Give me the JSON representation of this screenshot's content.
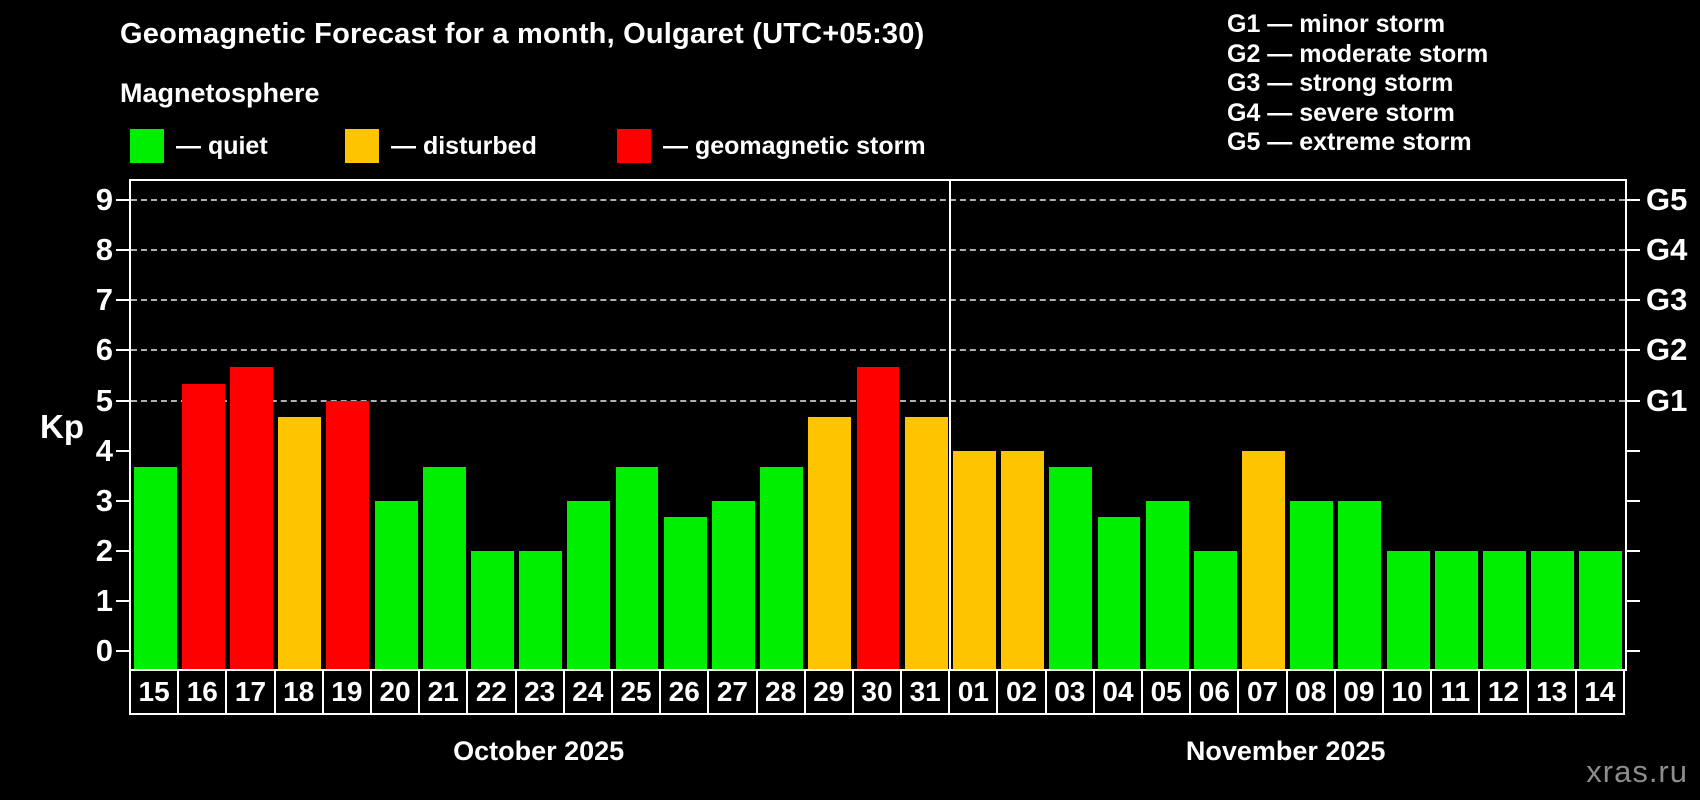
{
  "title": "Geomagnetic Forecast for a month, Oulgaret (UTC+05:30)",
  "subtitle": "Magnetosphere",
  "legend": {
    "items": [
      {
        "key": "quiet",
        "label": "— quiet",
        "color": "#00ee00"
      },
      {
        "key": "disturbed",
        "label": "— disturbed",
        "color": "#ffc400"
      },
      {
        "key": "storm",
        "label": "— geomagnetic storm",
        "color": "#ff0000"
      }
    ]
  },
  "g_scale_legend": [
    "G1 — minor storm",
    "G2 — moderate storm",
    "G3 — strong storm",
    "G4 — severe storm",
    "G5 — extreme storm"
  ],
  "watermark": "xras.ru",
  "chart_data": {
    "type": "bar",
    "title": "Geomagnetic Forecast for a month, Oulgaret (UTC+05:30)",
    "ylabel": "Kp",
    "ylim": [
      -0.37,
      9.37
    ],
    "yticks": [
      0,
      1,
      2,
      3,
      4,
      5,
      6,
      7,
      8,
      9
    ],
    "gridlines_at": [
      5,
      6,
      7,
      8,
      9
    ],
    "grid": "dashed",
    "right_axis_labels": [
      {
        "kp": 5,
        "label": "G1"
      },
      {
        "kp": 6,
        "label": "G2"
      },
      {
        "kp": 7,
        "label": "G3"
      },
      {
        "kp": 8,
        "label": "G4"
      },
      {
        "kp": 9,
        "label": "G5"
      }
    ],
    "months": [
      {
        "label": "October 2025",
        "days": 17
      },
      {
        "label": "November 2025",
        "days": 14
      }
    ],
    "categories": [
      "15",
      "16",
      "17",
      "18",
      "19",
      "20",
      "21",
      "22",
      "23",
      "24",
      "25",
      "26",
      "27",
      "28",
      "29",
      "30",
      "31",
      "01",
      "02",
      "03",
      "04",
      "05",
      "06",
      "07",
      "08",
      "09",
      "10",
      "11",
      "12",
      "13",
      "14"
    ],
    "values": [
      3.67,
      5.33,
      5.67,
      4.67,
      5.0,
      3.0,
      3.67,
      2.0,
      2.0,
      3.0,
      3.67,
      2.67,
      3.0,
      3.67,
      4.67,
      5.67,
      4.67,
      4.0,
      4.0,
      3.67,
      2.67,
      3.0,
      2.0,
      4.0,
      3.0,
      3.0,
      2.0,
      2.0,
      2.0,
      2.0,
      2.0
    ],
    "status": [
      "quiet",
      "storm",
      "storm",
      "disturbed",
      "storm",
      "quiet",
      "quiet",
      "quiet",
      "quiet",
      "quiet",
      "quiet",
      "quiet",
      "quiet",
      "quiet",
      "disturbed",
      "storm",
      "disturbed",
      "disturbed",
      "disturbed",
      "quiet",
      "quiet",
      "quiet",
      "quiet",
      "disturbed",
      "quiet",
      "quiet",
      "quiet",
      "quiet",
      "quiet",
      "quiet",
      "quiet"
    ],
    "colors": {
      "quiet": "#00ee00",
      "disturbed": "#ffc400",
      "storm": "#ff0000"
    }
  }
}
